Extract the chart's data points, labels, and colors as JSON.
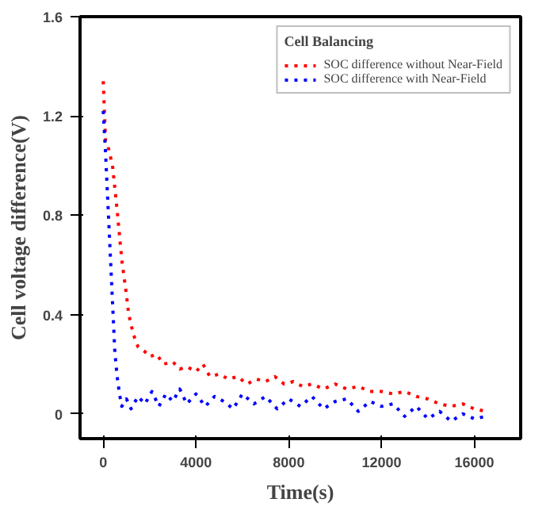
{
  "chart_data": {
    "type": "line",
    "xlabel": "Time(s)",
    "ylabel": "Cell voltage difference(V)",
    "legend_title": "Cell Balancing",
    "legend": "top right",
    "line_style": "dotted",
    "grid": false,
    "xlim": [
      -1000,
      18000
    ],
    "ylim": [
      -0.1,
      1.6
    ],
    "xticks": [
      0,
      4000,
      8000,
      12000,
      16000
    ],
    "yticks": [
      0,
      0.4,
      0.8,
      1.2,
      1.6
    ],
    "series": [
      {
        "name": "SOC difference without Near-Field",
        "color": "#ff0000",
        "x": [
          0,
          100,
          200,
          400,
          600,
          800,
          1000,
          1100,
          1300,
          1500,
          1800,
          2000,
          2300,
          2600,
          3000,
          3300,
          3600,
          4000,
          4300,
          4600,
          5000,
          5400,
          5800,
          6200,
          6600,
          7000,
          7400,
          7800,
          8200,
          8600,
          9000,
          9500,
          10000,
          10500,
          11000,
          11500,
          12000,
          12500,
          13000,
          13500,
          14000,
          14500,
          15000,
          15500,
          16000,
          16500
        ],
        "values": [
          1.34,
          1.1,
          1.08,
          1.0,
          0.82,
          0.62,
          0.48,
          0.4,
          0.32,
          0.27,
          0.25,
          0.23,
          0.24,
          0.2,
          0.21,
          0.18,
          0.19,
          0.17,
          0.2,
          0.15,
          0.16,
          0.14,
          0.15,
          0.12,
          0.14,
          0.13,
          0.15,
          0.12,
          0.13,
          0.11,
          0.12,
          0.1,
          0.12,
          0.1,
          0.11,
          0.09,
          0.09,
          0.08,
          0.09,
          0.07,
          0.06,
          0.04,
          0.03,
          0.04,
          0.02,
          0.01
        ]
      },
      {
        "name": "SOC difference with Near-Field",
        "color": "#0000ff",
        "x": [
          0,
          100,
          200,
          300,
          400,
          500,
          600,
          700,
          800,
          1000,
          1200,
          1500,
          1800,
          2100,
          2400,
          2700,
          3000,
          3300,
          3600,
          4000,
          4400,
          4800,
          5200,
          5600,
          6000,
          6500,
          7000,
          7500,
          8000,
          8500,
          9000,
          9500,
          10000,
          10500,
          11000,
          11500,
          12000,
          12500,
          13000,
          13500,
          14000,
          14500,
          15000,
          15500,
          16000,
          16500
        ],
        "values": [
          1.22,
          1.05,
          0.85,
          0.65,
          0.45,
          0.25,
          0.15,
          0.08,
          0.03,
          0.06,
          0.02,
          0.07,
          0.04,
          0.09,
          0.03,
          0.08,
          0.05,
          0.1,
          0.04,
          0.08,
          0.03,
          0.07,
          0.05,
          0.02,
          0.08,
          0.04,
          0.07,
          0.02,
          0.06,
          0.03,
          0.07,
          0.02,
          0.05,
          0.06,
          0.01,
          0.05,
          0.03,
          0.04,
          -0.01,
          0.03,
          -0.02,
          0.01,
          -0.03,
          0.0,
          -0.02,
          -0.01
        ]
      }
    ]
  }
}
